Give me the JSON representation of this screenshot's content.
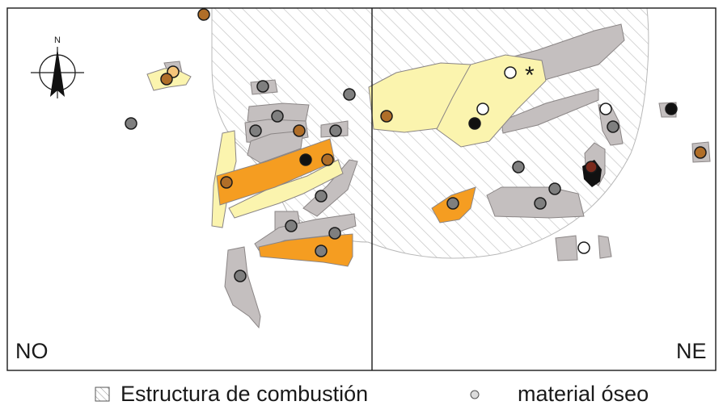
{
  "quadrants": {
    "left": "NO",
    "right": "NE"
  },
  "compass": {
    "label": "N",
    "icon": "north-arrow-icon"
  },
  "annotation": {
    "asterisk": "*"
  },
  "legend": {
    "items": [
      {
        "label": "Estructura de combustión",
        "symbol": "hatched-square"
      },
      {
        "label": "material óseo",
        "symbol": "small-circle"
      }
    ]
  },
  "colors": {
    "frame": "#1a1a1a",
    "hatch_line": "#c8c8c8",
    "grey_patch": "#c4bfbf",
    "yellow_patch": "#fbf4ae",
    "orange_patch": "#f59d21",
    "dot_grey": "#7f7f7f",
    "dot_brown": "#b06e28",
    "dot_black": "#111111",
    "dot_white": "#ffffff",
    "dot_peach": "#f5c57a"
  }
}
